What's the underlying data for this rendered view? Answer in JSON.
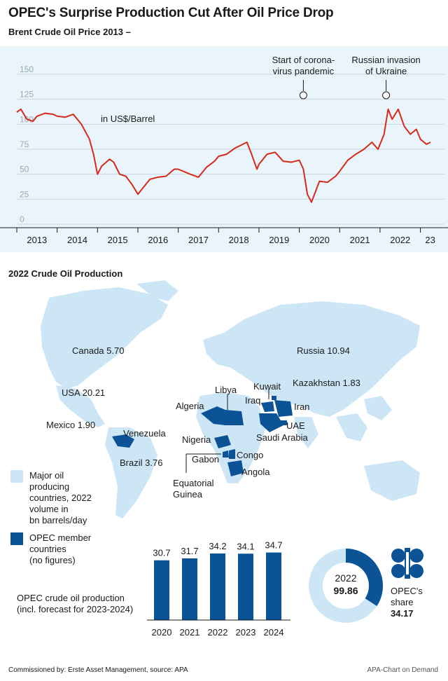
{
  "title": "OPEC's Surprise Production Cut After Oil Price Drop",
  "price_section": {
    "subtitle": "Brent Crude Oil Price 2013 –",
    "unit_label": "in US$/Barrel",
    "annotation_covid": [
      "Start of corona-",
      "virus pandemic"
    ],
    "annotation_ukraine": [
      "Russian invasion",
      "of Ukraine"
    ]
  },
  "production_section": {
    "title": "2022 Crude Oil Production",
    "legend_major": [
      "Major oil",
      "producing",
      "countries, 2022",
      "volume in",
      "bn barrels/day"
    ],
    "legend_opec": [
      "OPEC member",
      "countries",
      "(no figures)"
    ],
    "countries": {
      "canada": "Canada 5.70",
      "usa": "USA 20.21",
      "mexico": "Mexico 1.90",
      "brazil": "Brazil 3.76",
      "russia": "Russia 10.94",
      "kazakhstan": "Kazakhstan 1.83",
      "venezuela": "Venezuela",
      "algeria": "Algeria",
      "libya": "Libya",
      "nigeria": "Nigeria",
      "gabon": "Gabon",
      "congo": "Congo",
      "angola": "Angola",
      "equatorial_guinea": [
        "Equatorial",
        "Guinea"
      ],
      "kuwait": "Kuwait",
      "iraq": "Iraq",
      "iran": "Iran",
      "uae": "UAE",
      "saudi_arabia": "Saudi Arabia"
    },
    "opec_bar_label": [
      "OPEC crude oil production",
      "(incl. forecast for 2023-2024)"
    ],
    "donut_year": "2022",
    "donut_total": "99.86",
    "donut_share_label": [
      "OPEC's",
      "share"
    ],
    "donut_share_value": "34.17"
  },
  "footer": {
    "left": "Commissioned by: Erste Asset Management, source: APA",
    "right": "APA-Chart on Demand"
  },
  "colors": {
    "panel_bg": "#e9f4fb",
    "line": "#d72a1a",
    "opec_blue": "#0b5394",
    "major_light": "#c4e1f5",
    "grid": "#c9d6df"
  },
  "chart_data": [
    {
      "type": "line",
      "title": "Brent Crude Oil Price 2013 –",
      "ylabel": "in US$/Barrel",
      "ylim": [
        0,
        150
      ],
      "yticks": [
        "0",
        "25",
        "50",
        "75",
        "100",
        "125",
        "150"
      ],
      "xticks": [
        "2013",
        "2014",
        "2015",
        "2016",
        "2017",
        "2018",
        "2019",
        "2020",
        "2021",
        "2022",
        "23"
      ],
      "grid": true,
      "series": [
        {
          "x": [
            2013.0,
            2013.1,
            2013.25,
            2013.4,
            2013.5,
            2013.7,
            2013.9,
            2014.0,
            2014.2,
            2014.4,
            2014.5,
            2014.6,
            2014.8,
            2014.9,
            2015.0,
            2015.1,
            2015.3,
            2015.4,
            2015.55,
            2015.7,
            2015.85,
            2016.0,
            2016.1,
            2016.3,
            2016.5,
            2016.7,
            2016.9,
            2017.0,
            2017.3,
            2017.5,
            2017.7,
            2017.9,
            2018.0,
            2018.2,
            2018.4,
            2018.7,
            2018.8,
            2018.95,
            2019.0,
            2019.2,
            2019.4,
            2019.6,
            2019.8,
            2020.0,
            2020.1,
            2020.2,
            2020.3,
            2020.5,
            2020.7,
            2020.9,
            2021.0,
            2021.2,
            2021.4,
            2021.6,
            2021.8,
            2021.95,
            2022.1,
            2022.2,
            2022.3,
            2022.45,
            2022.6,
            2022.75,
            2022.9,
            2023.0,
            2023.15,
            2023.25
          ],
          "y": [
            112,
            115,
            105,
            103,
            108,
            111,
            110,
            108,
            107,
            110,
            105,
            100,
            85,
            70,
            50,
            58,
            65,
            62,
            50,
            48,
            40,
            30,
            35,
            45,
            47,
            48,
            55,
            55,
            50,
            47,
            57,
            63,
            68,
            70,
            76,
            82,
            72,
            55,
            60,
            70,
            72,
            63,
            62,
            64,
            55,
            30,
            22,
            43,
            42,
            48,
            53,
            64,
            70,
            75,
            82,
            75,
            90,
            115,
            105,
            115,
            98,
            90,
            95,
            85,
            80,
            82
          ]
        }
      ],
      "annotations": [
        "Start of corona-virus pandemic",
        "Russian invasion of Ukraine"
      ]
    },
    {
      "type": "bar",
      "title": "OPEC crude oil production (incl. forecast for 2023-2024)",
      "categories": [
        "2020",
        "2021",
        "2022",
        "2023",
        "2024"
      ],
      "values": [
        30.7,
        31.7,
        34.2,
        34.1,
        34.7
      ],
      "series": [
        {
          "values": [
            30.7,
            31.7,
            34.2,
            34.1,
            34.7
          ]
        }
      ]
    },
    {
      "type": "pie",
      "title": "2022",
      "total": 99.86,
      "slices": [
        {
          "name": "OPEC's share",
          "value": 34.17
        },
        {
          "name": "",
          "value": 65.69
        }
      ]
    }
  ]
}
